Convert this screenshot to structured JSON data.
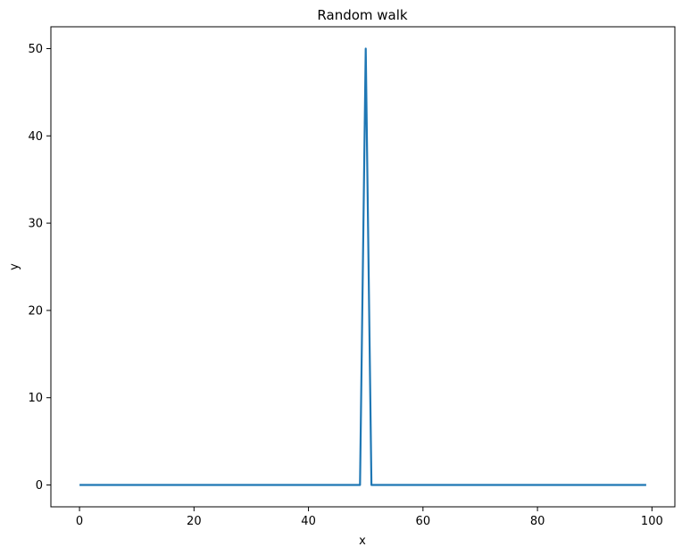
{
  "chart_data": {
    "type": "line",
    "title": "Random walk",
    "xlabel": "x",
    "ylabel": "y",
    "xlim": [
      -5,
      104
    ],
    "ylim": [
      -2.5,
      52.5
    ],
    "xticks": [
      0,
      20,
      40,
      60,
      80,
      100
    ],
    "yticks": [
      0,
      10,
      20,
      30,
      40,
      50
    ],
    "grid": false,
    "series": [
      {
        "color": "#1f77b4",
        "x": [
          0,
          49,
          50,
          51,
          99
        ],
        "y": [
          0,
          0,
          50,
          0,
          0
        ]
      }
    ]
  }
}
